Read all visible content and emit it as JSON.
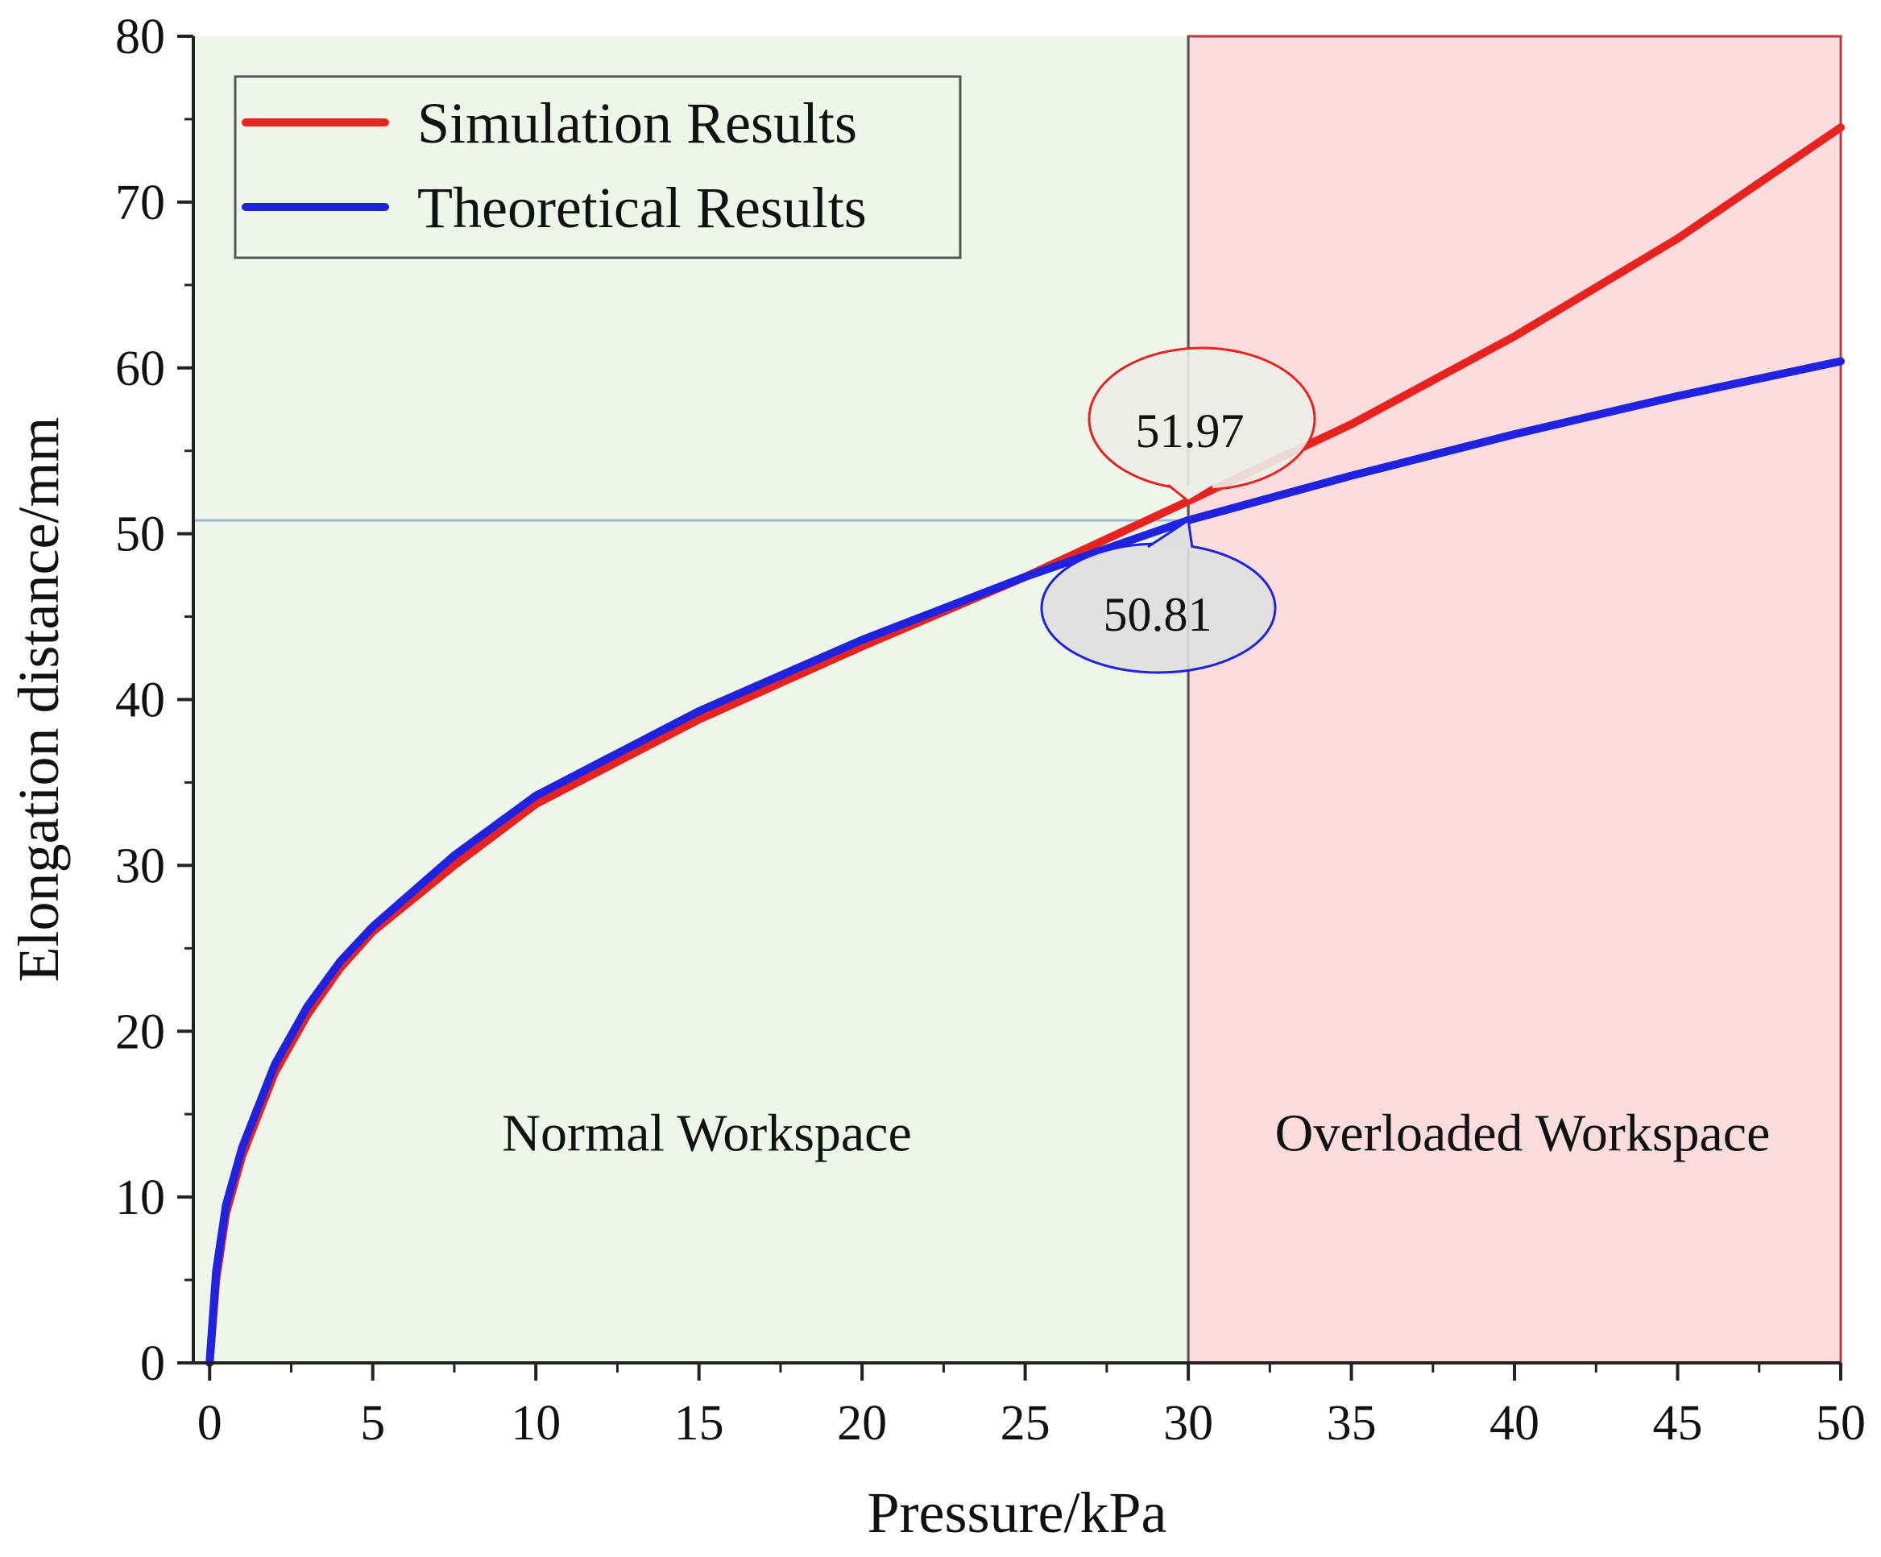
{
  "chart_data": {
    "type": "line",
    "xlabel": "Pressure/kPa",
    "ylabel": "Elongation distance/mm",
    "xlim": [
      -0.5,
      50
    ],
    "ylim": [
      0,
      80
    ],
    "xticks": [
      0,
      5,
      10,
      15,
      20,
      25,
      30,
      35,
      40,
      45,
      50
    ],
    "yticks": [
      0,
      10,
      20,
      30,
      40,
      50,
      60,
      70,
      80
    ],
    "grid": false,
    "legend_position": "top-left",
    "series": [
      {
        "name": "Simulation Results",
        "color": "#e8231f",
        "x": [
          0,
          0.2,
          0.5,
          1,
          2,
          3,
          4,
          5,
          7.5,
          10,
          15,
          20,
          25,
          30,
          35,
          40,
          45,
          50
        ],
        "y": [
          0,
          5,
          9,
          12.5,
          17.5,
          21,
          23.8,
          26,
          30,
          33.7,
          38.8,
          43.2,
          47.4,
          51.97,
          56.6,
          61.9,
          67.8,
          74.5
        ]
      },
      {
        "name": "Theoretical Results",
        "color": "#1f22e0",
        "x": [
          0,
          0.2,
          0.5,
          1,
          2,
          3,
          4,
          5,
          7.5,
          10,
          15,
          20,
          25,
          30,
          35,
          40,
          45,
          50
        ],
        "y": [
          0,
          5.5,
          9.5,
          13,
          18,
          21.5,
          24.2,
          26.3,
          30.6,
          34.2,
          39.3,
          43.6,
          47.4,
          50.81,
          53.5,
          56,
          58.3,
          60.4
        ]
      }
    ],
    "regions": [
      {
        "label": "Normal Workspace",
        "x_range": [
          -0.5,
          30
        ],
        "color": "#eef5e9"
      },
      {
        "label": "Overloaded Workspace",
        "x_range": [
          30,
          50
        ],
        "color": "#fbdcdc"
      }
    ],
    "reference_line": {
      "y": 50.81,
      "color": "#9fb3dd"
    },
    "annotations": [
      {
        "text": "51.97",
        "x": 30,
        "y": 51.97,
        "color": "#e8231f"
      },
      {
        "text": "50.81",
        "x": 30,
        "y": 50.81,
        "color": "#1f22e0"
      }
    ]
  }
}
